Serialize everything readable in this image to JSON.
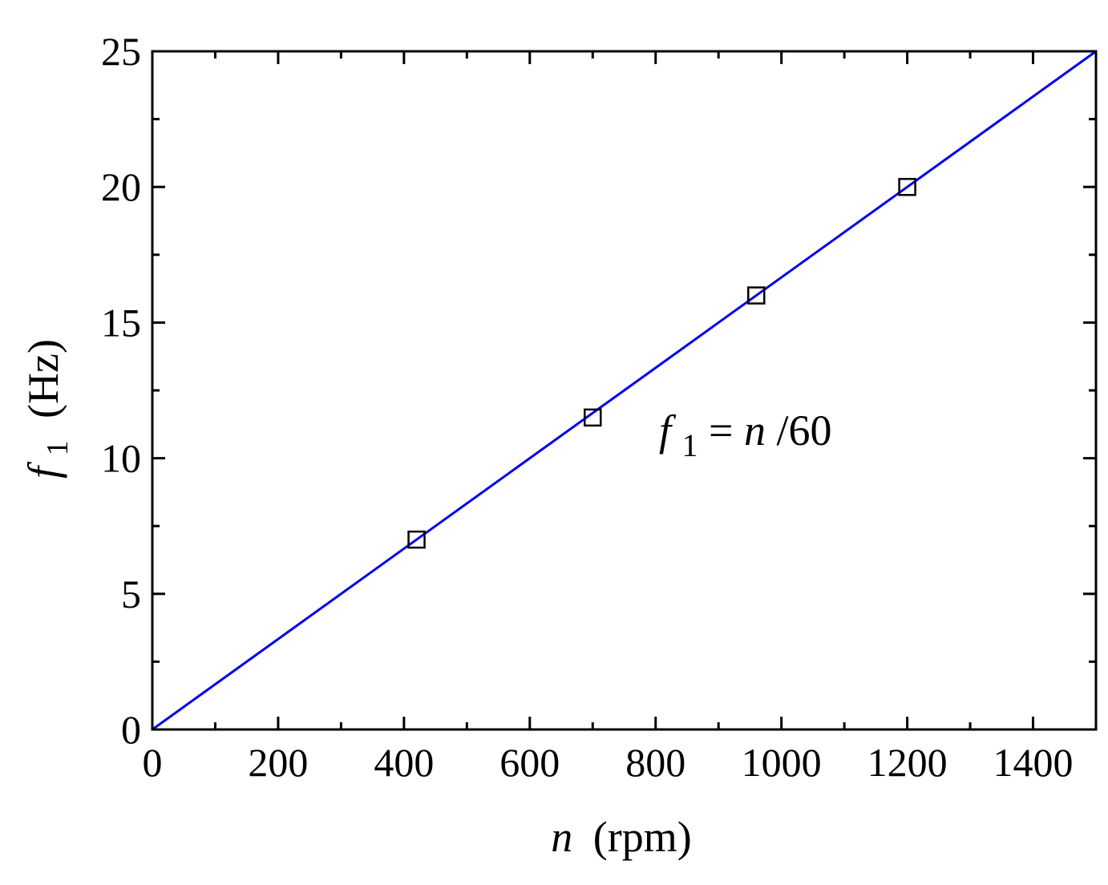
{
  "chart_data": {
    "type": "scatter",
    "xlabel_var": "n",
    "xlabel_unit": "(rpm)",
    "ylabel_var": "f",
    "ylabel_sub": "1",
    "ylabel_unit": "(Hz)",
    "xlim": [
      0,
      1500
    ],
    "ylim": [
      0,
      25
    ],
    "x_ticks": [
      0,
      200,
      400,
      600,
      800,
      1000,
      1200,
      1400
    ],
    "y_ticks": [
      0,
      5,
      10,
      15,
      20,
      25
    ],
    "x_minor_step": 100,
    "y_minor_step": 2.5,
    "grid": false,
    "series": [
      {
        "marker": "open-square",
        "color": "#000000",
        "x": [
          420,
          700,
          960,
          1200
        ],
        "y": [
          7,
          11.5,
          16,
          20
        ]
      }
    ],
    "fit_line": {
      "color": "#0000ee",
      "x": [
        0,
        1500
      ],
      "y": [
        0,
        25
      ]
    },
    "annotation": {
      "var": "f",
      "sub": "1",
      "eq": "=",
      "rhs_var": "n",
      "rhs_rest": "/60"
    }
  }
}
